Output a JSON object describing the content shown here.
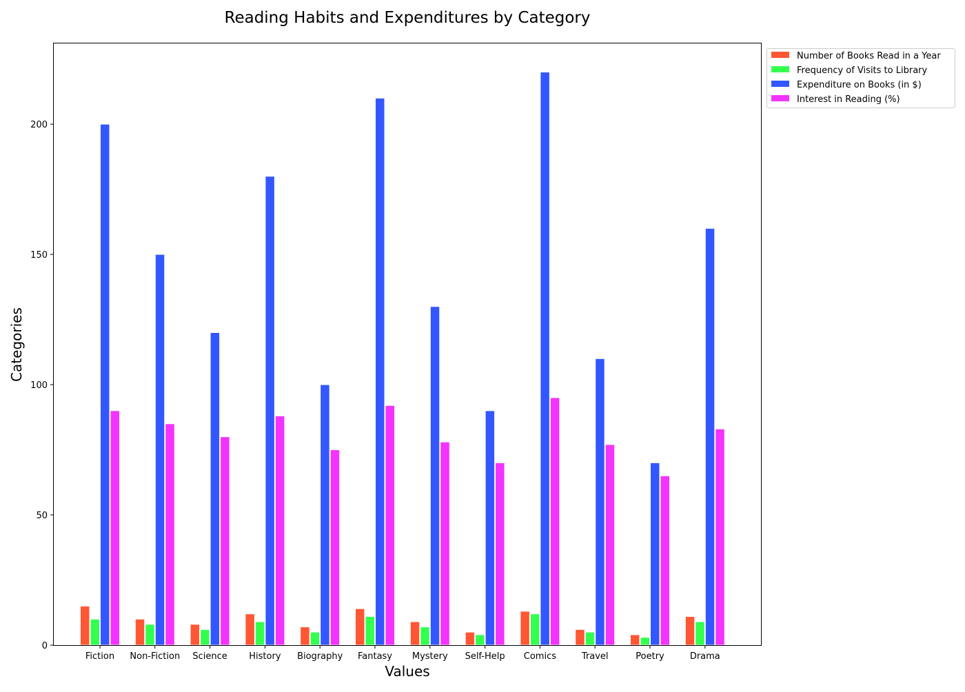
{
  "chart_data": {
    "type": "bar",
    "title": "Reading Habits and Expenditures by Category",
    "xlabel": "Values",
    "ylabel": "Categories",
    "categories": [
      "Fiction",
      "Non-Fiction",
      "Science",
      "History",
      "Biography",
      "Fantasy",
      "Mystery",
      "Self-Help",
      "Comics",
      "Travel",
      "Poetry",
      "Drama"
    ],
    "ylim": [
      0,
      231
    ],
    "yticks": [
      0,
      50,
      100,
      150,
      200
    ],
    "grid": false,
    "legend_position": "upper-right-outside",
    "series": [
      {
        "name": "Number of Books Read in a Year",
        "color": "#FF5733",
        "values": [
          15,
          10,
          8,
          12,
          7,
          14,
          9,
          5,
          13,
          6,
          4,
          11
        ]
      },
      {
        "name": "Frequency of Visits to Library",
        "color": "#33FF4F",
        "values": [
          10,
          8,
          6,
          9,
          5,
          11,
          7,
          4,
          12,
          5,
          3,
          9
        ]
      },
      {
        "name": "Expenditure on Books (in $)",
        "color": "#3357FF",
        "values": [
          200,
          150,
          120,
          180,
          100,
          210,
          130,
          90,
          220,
          110,
          70,
          160
        ]
      },
      {
        "name": "Interest in Reading (%)",
        "color": "#F333FF",
        "values": [
          90,
          85,
          80,
          88,
          75,
          92,
          78,
          70,
          95,
          77,
          65,
          83
        ]
      }
    ]
  }
}
